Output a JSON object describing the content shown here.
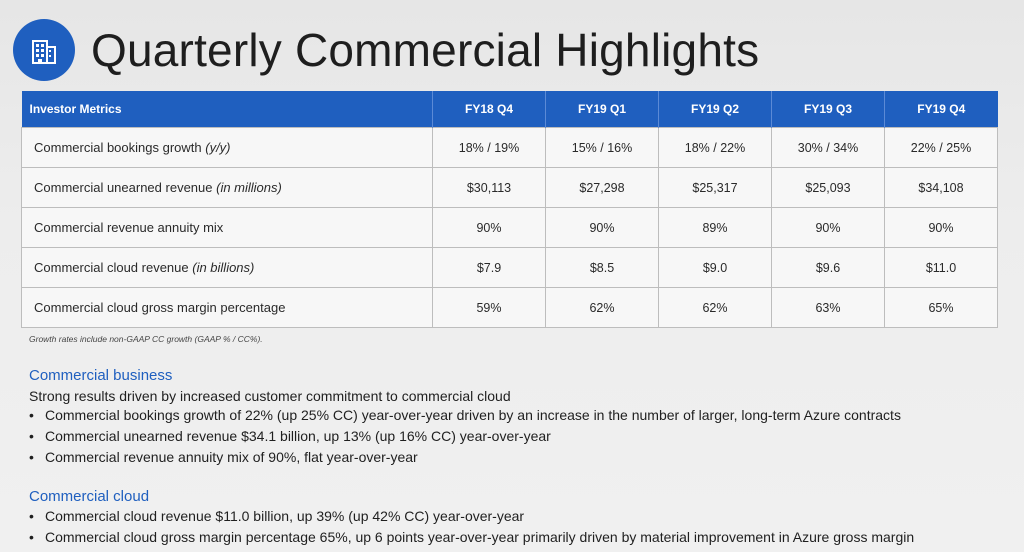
{
  "header": {
    "title": "Quarterly Commercial Highlights",
    "logo_icon": "office-building-icon",
    "accent_color": "#1f5fbf"
  },
  "table": {
    "columns": [
      "Investor Metrics",
      "FY18 Q4",
      "FY19 Q1",
      "FY19 Q2",
      "FY19 Q3",
      "FY19 Q4"
    ],
    "rows": [
      {
        "label": "Commercial bookings growth ",
        "qualifier": "(y/y)",
        "values": [
          "18% / 19%",
          "15% / 16%",
          "18% / 22%",
          "30% / 34%",
          "22% / 25%"
        ]
      },
      {
        "label": "Commercial unearned revenue ",
        "qualifier": "(in millions)",
        "values": [
          "$30,113",
          "$27,298",
          "$25,317",
          "$25,093",
          "$34,108"
        ]
      },
      {
        "label": "Commercial revenue annuity mix",
        "qualifier": "",
        "values": [
          "90%",
          "90%",
          "89%",
          "90%",
          "90%"
        ]
      },
      {
        "label": "Commercial cloud revenue ",
        "qualifier": "(in billions)",
        "values": [
          "$7.9",
          "$8.5",
          "$9.0",
          "$9.6",
          "$11.0"
        ]
      },
      {
        "label": "Commercial cloud gross margin percentage",
        "qualifier": "",
        "values": [
          "59%",
          "62%",
          "62%",
          "63%",
          "65%"
        ]
      }
    ],
    "footnote": "Growth rates include non-GAAP CC growth (GAAP % / CC%)."
  },
  "sections": [
    {
      "heading": "Commercial business",
      "lead": "Strong results driven by increased customer commitment to commercial cloud",
      "bullets": [
        "Commercial bookings growth of 22% (up 25% CC) year-over-year driven by an increase in the number of larger, long-term Azure contracts",
        "Commercial unearned revenue $34.1 billion, up 13% (up 16% CC) year-over-year",
        "Commercial revenue annuity mix of 90%, flat year-over-year"
      ]
    },
    {
      "heading": "Commercial cloud",
      "lead": "",
      "bullets": [
        "Commercial cloud revenue $11.0 billion, up 39% (up 42% CC) year-over-year",
        "Commercial cloud gross margin percentage 65%, up 6 points year-over-year primarily driven by material improvement in Azure gross margin"
      ]
    }
  ]
}
